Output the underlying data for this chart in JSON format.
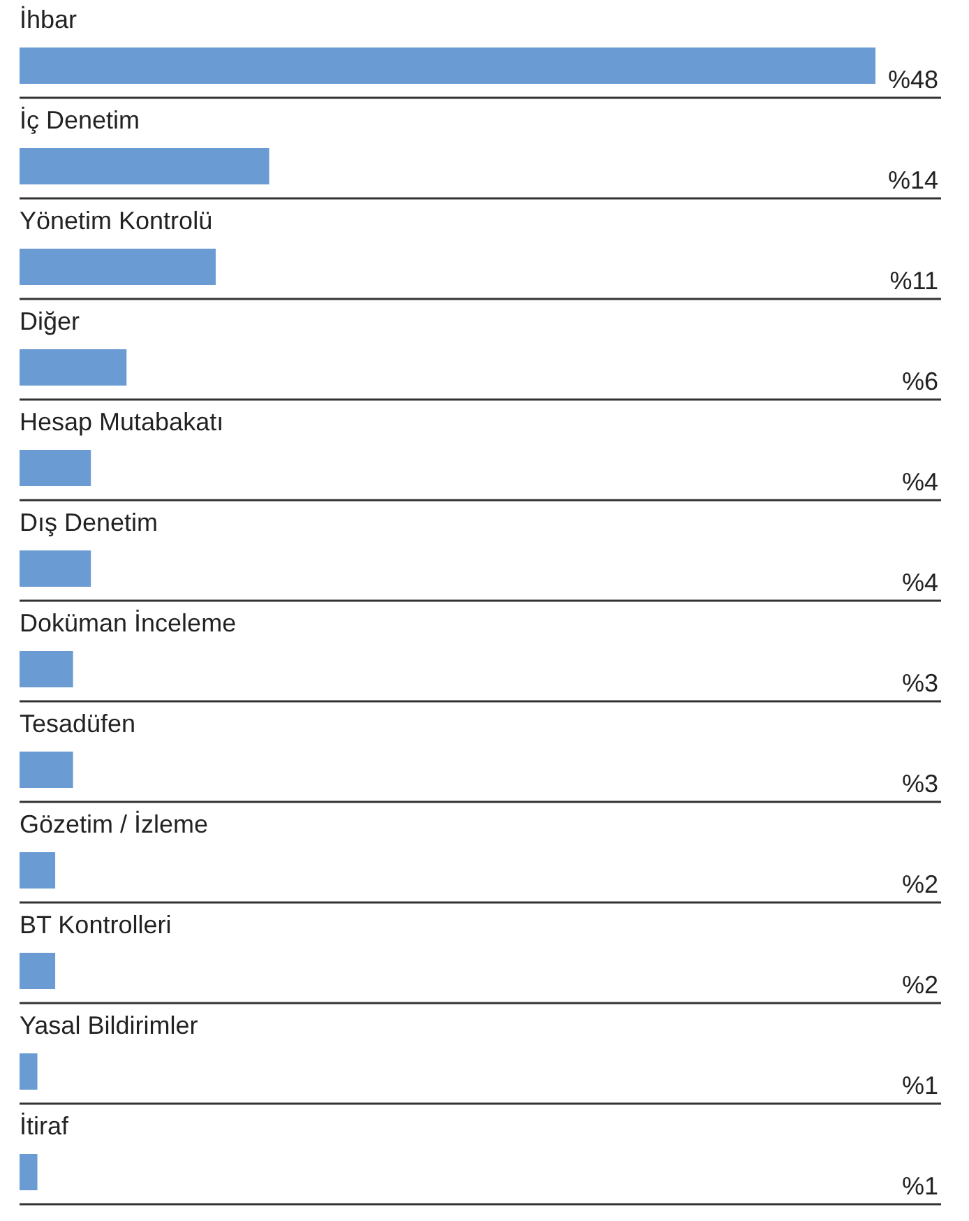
{
  "chart_data": {
    "type": "bar",
    "orientation": "horizontal",
    "categories": [
      "İhbar",
      "İç Denetim",
      "Yönetim Kontrolü",
      "Diğer",
      "Hesap Mutabakatı",
      "Dış Denetim",
      "Doküman İnceleme",
      "Tesadüfen",
      "Gözetim / İzleme",
      "BT Kontrolleri",
      "Yasal Bildirimler",
      "İtiraf"
    ],
    "values": [
      48,
      14,
      11,
      6,
      4,
      4,
      3,
      3,
      2,
      2,
      1,
      1
    ],
    "value_labels": [
      "%48",
      "%14",
      "%11",
      "%6",
      "%4",
      "%4",
      "%3",
      "%3",
      "%2",
      "%2",
      "%1",
      "%1"
    ],
    "color": "#6a9bd3"
  }
}
